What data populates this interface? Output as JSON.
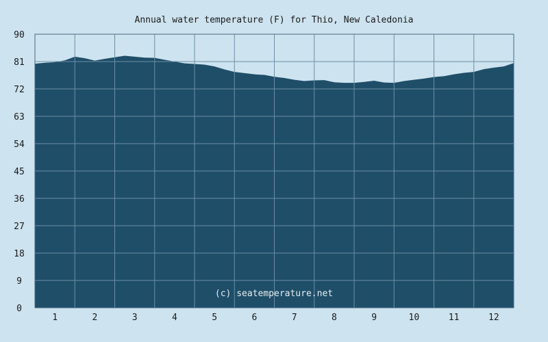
{
  "chart_data": {
    "type": "area",
    "title": "Annual water temperature (F) for Thio, New Caledonia",
    "xlabel": "",
    "ylabel": "",
    "ylim": [
      0,
      90
    ],
    "yticks": [
      "0",
      "9",
      "18",
      "27",
      "36",
      "45",
      "54",
      "63",
      "72",
      "81",
      "90"
    ],
    "xlim": [
      0.5,
      12.5
    ],
    "xticks": [
      "1",
      "2",
      "3",
      "4",
      "5",
      "6",
      "7",
      "8",
      "9",
      "10",
      "11",
      "12"
    ],
    "grid": true,
    "watermark": "(c) seatemperature.net",
    "colors": {
      "background": "#cde3ef",
      "fill": "#1f4e69",
      "grid": "#6c8fa5",
      "axis": "#4a6a80"
    },
    "series": [
      {
        "x": [
          0.5,
          0.75,
          1.0,
          1.25,
          1.5,
          1.75,
          2.0,
          2.25,
          2.5,
          2.75,
          3.0,
          3.25,
          3.5,
          3.75,
          4.0,
          4.25,
          4.5,
          4.75,
          5.0,
          5.25,
          5.5,
          5.75,
          6.0,
          6.25,
          6.5,
          6.75,
          7.0,
          7.25,
          7.5,
          7.75,
          8.0,
          8.25,
          8.5,
          8.75,
          9.0,
          9.25,
          9.5,
          9.75,
          10.0,
          10.25,
          10.5,
          10.75,
          11.0,
          11.25,
          11.5,
          11.75,
          12.0,
          12.25,
          12.5
        ],
        "values": [
          80.3,
          80.6,
          80.8,
          81.4,
          82.6,
          82.1,
          81.3,
          81.9,
          82.4,
          82.9,
          82.6,
          82.3,
          82.2,
          81.6,
          81.0,
          80.4,
          80.2,
          80.0,
          79.4,
          78.4,
          77.6,
          77.2,
          76.8,
          76.6,
          76.0,
          75.6,
          75.0,
          74.6,
          74.8,
          74.9,
          74.2,
          74.0,
          74.0,
          74.3,
          74.7,
          74.1,
          74.0,
          74.6,
          75.0,
          75.4,
          75.9,
          76.2,
          76.8,
          77.3,
          77.6,
          78.5,
          79.0,
          79.4,
          80.5
        ]
      }
    ]
  }
}
